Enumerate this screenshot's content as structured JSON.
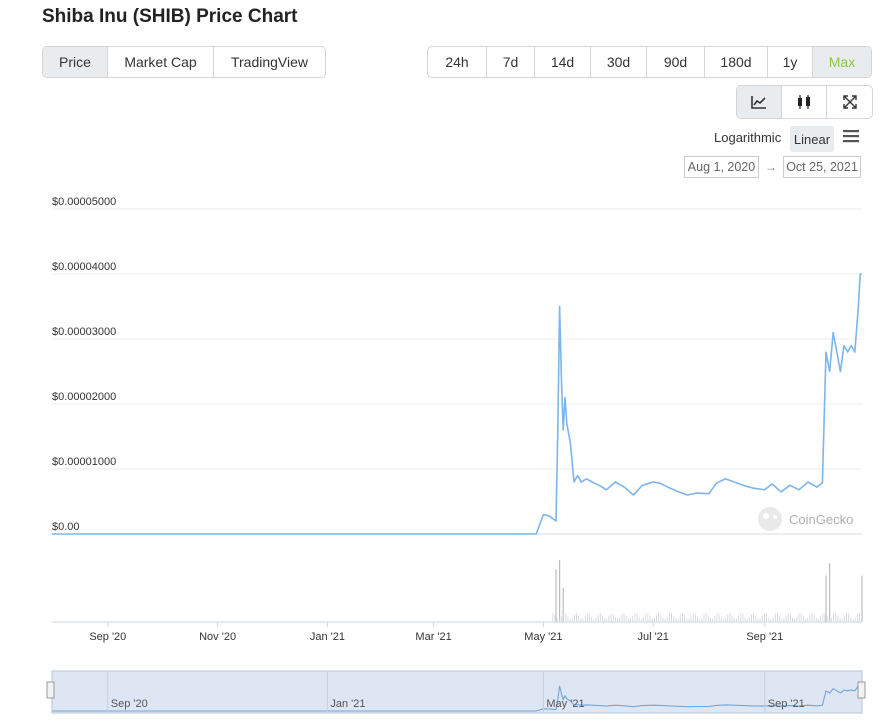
{
  "page": {
    "title": "Shiba Inu (SHIB) Price Chart"
  },
  "view_tabs": [
    {
      "label": "Price",
      "active": true
    },
    {
      "label": "Market Cap",
      "active": false
    },
    {
      "label": "TradingView",
      "active": false
    }
  ],
  "range_tabs": [
    {
      "label": "24h"
    },
    {
      "label": "7d"
    },
    {
      "label": "14d"
    },
    {
      "label": "30d"
    },
    {
      "label": "90d"
    },
    {
      "label": "180d"
    },
    {
      "label": "1y"
    },
    {
      "label": "Max",
      "active": true
    }
  ],
  "chart_type_icons": [
    "line-chart-icon",
    "candlestick-icon",
    "fullscreen-icon"
  ],
  "scale": {
    "log_label": "Logarithmic",
    "linear_label": "Linear",
    "selected": "Linear"
  },
  "menu_icon": "hamburger-menu-icon",
  "date_range": {
    "from": "Aug 1, 2020",
    "arrow": "→",
    "to": "Oct 25, 2021"
  },
  "watermark": "CoinGecko",
  "colors": {
    "line": "#7cb5ec",
    "active_range": "#8dc647",
    "navigator_fill": "#ccd6eb"
  },
  "chart_data": {
    "type": "line",
    "series": [
      {
        "x": [
          "2020-08-01",
          "2020-09-01",
          "2020-10-01",
          "2020-11-01",
          "2020-12-01",
          "2021-01-01",
          "2021-02-01",
          "2021-03-01",
          "2021-04-01",
          "2021-04-15",
          "2021-04-22",
          "2021-04-27",
          "2021-05-01",
          "2021-05-04",
          "2021-05-08",
          "2021-05-09",
          "2021-05-10",
          "2021-05-11",
          "2021-05-12",
          "2021-05-13",
          "2021-05-14",
          "2021-05-16",
          "2021-05-18",
          "2021-05-20",
          "2021-05-22",
          "2021-05-25",
          "2021-05-28",
          "2021-06-01",
          "2021-06-05",
          "2021-06-10",
          "2021-06-15",
          "2021-06-20",
          "2021-06-25",
          "2021-07-01",
          "2021-07-05",
          "2021-07-10",
          "2021-07-15",
          "2021-07-20",
          "2021-07-25",
          "2021-08-01",
          "2021-08-05",
          "2021-08-10",
          "2021-08-15",
          "2021-08-20",
          "2021-08-25",
          "2021-09-01",
          "2021-09-05",
          "2021-09-10",
          "2021-09-15",
          "2021-09-20",
          "2021-09-25",
          "2021-09-30",
          "2021-10-03",
          "2021-10-05",
          "2021-10-07",
          "2021-10-09",
          "2021-10-11",
          "2021-10-13",
          "2021-10-15",
          "2021-10-17",
          "2021-10-19",
          "2021-10-21",
          "2021-10-23",
          "2021-10-24",
          "2021-10-25"
        ],
        "values": [
          1e-10,
          1e-10,
          1e-10,
          1e-10,
          1e-10,
          1e-10,
          1e-10,
          2e-10,
          5e-10,
          6e-09,
          1.2e-08,
          2.5e-09,
          3e-06,
          2.8e-06,
          2e-06,
          1.6e-05,
          3.5e-05,
          2.4e-05,
          1.6e-05,
          2.1e-05,
          1.7e-05,
          1.4e-05,
          8e-06,
          9e-06,
          8e-06,
          8.5e-06,
          8e-06,
          7.5e-06,
          6.8e-06,
          8e-06,
          7.2e-06,
          6e-06,
          7.5e-06,
          8e-06,
          7.8e-06,
          7.1e-06,
          6.5e-06,
          6e-06,
          6.3e-06,
          6.2e-06,
          7.8e-06,
          8.5e-06,
          8e-06,
          7.5e-06,
          7.1e-06,
          6.8e-06,
          7.7e-06,
          6.5e-06,
          7.5e-06,
          6.8e-06,
          8e-06,
          7.2e-06,
          7.9e-06,
          2.8e-05,
          2.5e-05,
          3.1e-05,
          2.8e-05,
          2.5e-05,
          2.9e-05,
          2.8e-05,
          2.9e-05,
          2.8e-05,
          3.5e-05,
          4e-05,
          4e-05
        ]
      }
    ],
    "y_ticks": [
      "$0.00",
      "$0.00001000",
      "$0.00002000",
      "$0.00003000",
      "$0.00004000",
      "$0.00005000"
    ],
    "ylim": [
      0,
      5e-05
    ],
    "x_ticks": [
      {
        "label": "Sep '20",
        "date": "2020-09-01"
      },
      {
        "label": "Nov '20",
        "date": "2020-11-01"
      },
      {
        "label": "Jan '21",
        "date": "2021-01-01"
      },
      {
        "label": "Mar '21",
        "date": "2021-03-01"
      },
      {
        "label": "May '21",
        "date": "2021-05-01"
      },
      {
        "label": "Jul '21",
        "date": "2021-07-01"
      },
      {
        "label": "Sep '21",
        "date": "2021-09-01"
      }
    ],
    "navigator_ticks": [
      {
        "label": "Sep '20",
        "date": "2020-09-01"
      },
      {
        "label": "Jan '21",
        "date": "2021-01-01"
      },
      {
        "label": "May '21",
        "date": "2021-05-01"
      },
      {
        "label": "Sep '21",
        "date": "2021-09-01"
      }
    ],
    "volume_spikes": [
      {
        "date": "2021-05-08",
        "level": 0.85
      },
      {
        "date": "2021-05-10",
        "level": 1.0
      },
      {
        "date": "2021-05-12",
        "level": 0.55
      },
      {
        "date": "2021-10-05",
        "level": 0.75
      },
      {
        "date": "2021-10-07",
        "level": 0.95
      },
      {
        "date": "2021-10-25",
        "level": 0.75
      }
    ],
    "grid": true,
    "legend": "none"
  }
}
